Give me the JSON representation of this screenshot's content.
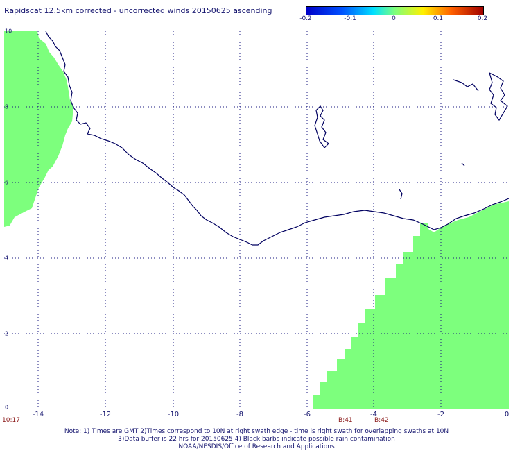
{
  "title": "Rapidscat 12.5km corrected - uncorrected winds 20150625 ascending",
  "colorbar": {
    "labels": [
      "-0.2",
      "-0.1",
      "0",
      "0.1",
      "0.2"
    ],
    "colors": [
      "#0000c8",
      "#0050ff",
      "#00e0ff",
      "#7dff7d",
      "#fff000",
      "#ff6000",
      "#a00000"
    ]
  },
  "axes": {
    "x_ticks": [
      "-14",
      "-12",
      "-10",
      "-8",
      "-6",
      "-4",
      "-2",
      "0"
    ],
    "y_ticks": [
      "0",
      "2",
      "4",
      "6",
      "8",
      "10"
    ],
    "x_range": [
      -14.9,
      0
    ],
    "y_range": [
      0,
      10
    ],
    "grid": true
  },
  "swath_times": {
    "left": "10:17",
    "mid1": "B:41",
    "mid2": "B:42"
  },
  "notes": [
    "Note: 1) Times are GMT 2)Times correspond to 10N at right swath edge - time is right swath for overlapping swaths at 10N",
    "3)Data buffer is 22 hrs for 20150625 4) Black barbs indicate possible rain contamination",
    "NOAA/NESDIS/Office of Research and Applications"
  ],
  "colors": {
    "swath": "#7dff7d",
    "coastline": "#000060",
    "grid": "#1a1a80"
  }
}
